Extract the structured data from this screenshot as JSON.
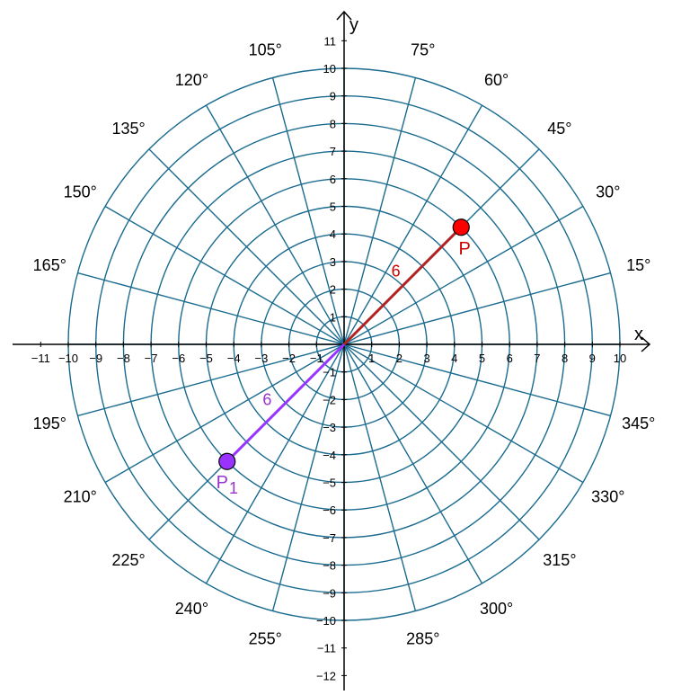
{
  "plot": {
    "x_axis_label": "x",
    "y_axis_label": "y",
    "x_tick_labels": [
      "−11",
      "−10",
      "−9",
      "−8",
      "−7",
      "−6",
      "−5",
      "−4",
      "−3",
      "−2",
      "−1",
      "1",
      "2",
      "3",
      "4",
      "5",
      "6",
      "7",
      "8",
      "9",
      "10"
    ],
    "x_tick_values": [
      -11,
      -10,
      -9,
      -8,
      -7,
      -6,
      -5,
      -4,
      -3,
      -2,
      -1,
      1,
      2,
      3,
      4,
      5,
      6,
      7,
      8,
      9,
      10
    ],
    "y_tick_labels": [
      "11",
      "10",
      "9",
      "8",
      "7",
      "6",
      "5",
      "4",
      "3",
      "2",
      "1",
      "−1",
      "−2",
      "−3",
      "−4",
      "−5",
      "−6",
      "−7",
      "−8",
      "−9",
      "−10",
      "−11",
      "−12"
    ],
    "y_tick_values": [
      11,
      10,
      9,
      8,
      7,
      6,
      5,
      4,
      3,
      2,
      1,
      -1,
      -2,
      -3,
      -4,
      -5,
      -6,
      -7,
      -8,
      -9,
      -10,
      -11,
      -12
    ],
    "max_radius": 10,
    "angle_step_deg": 15,
    "angle_labels": [
      "15°",
      "30°",
      "45°",
      "60°",
      "75°",
      "105°",
      "120°",
      "135°",
      "150°",
      "165°",
      "195°",
      "210°",
      "225°",
      "240°",
      "255°",
      "285°",
      "300°",
      "315°",
      "330°",
      "345°"
    ],
    "angle_values": [
      15,
      30,
      45,
      60,
      75,
      105,
      120,
      135,
      150,
      165,
      195,
      210,
      225,
      240,
      255,
      285,
      300,
      315,
      330,
      345
    ],
    "grid_color": "#1a6b8f",
    "axis_color": "#000000"
  },
  "points": [
    {
      "name": "P",
      "r": 6,
      "theta_deg": 45,
      "segment_label": "6",
      "color": "#ff0000",
      "segment_color": "#b22222",
      "label_color": "#cc0000"
    },
    {
      "name": "P",
      "subscript": "1",
      "r": 6,
      "theta_deg": 225,
      "segment_label": "6",
      "color": "#9933ff",
      "segment_color": "#9933ff",
      "label_color": "#9933cc"
    }
  ]
}
